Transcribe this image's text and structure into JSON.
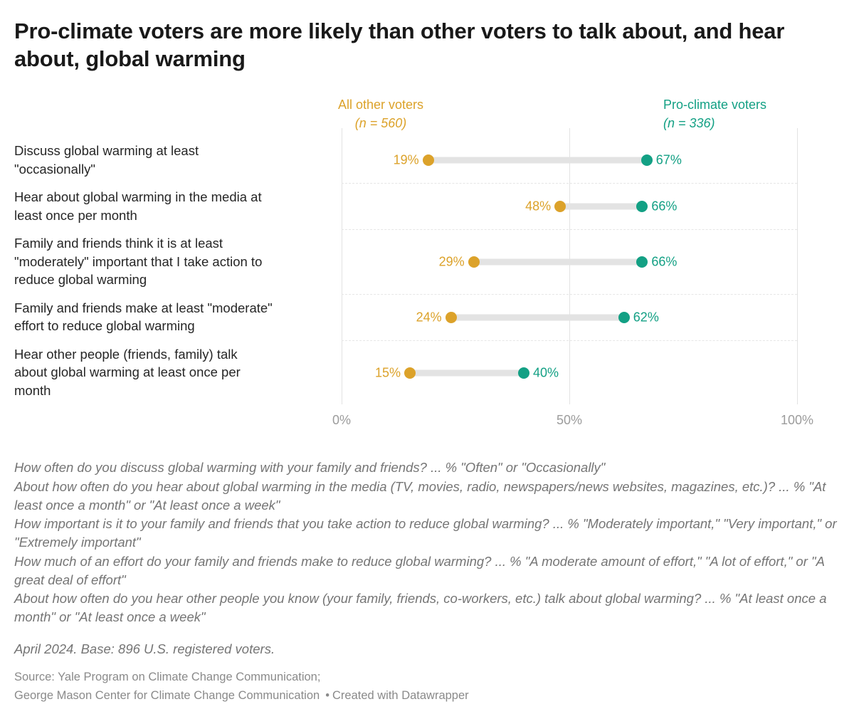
{
  "title": "Pro-climate voters are more likely than other voters to talk about, and hear about, global warming",
  "legend": {
    "other": {
      "label": "All other voters",
      "n_label": "(n = 560)",
      "color": "#DCA22A"
    },
    "pro": {
      "label": "Pro-climate voters",
      "n_label": "(n = 336)",
      "color": "#13A084"
    }
  },
  "chart_data": {
    "type": "dumbbell",
    "title": "Pro-climate voters are more likely than other voters to talk about, and hear about, global warming",
    "categories": [
      "Discuss global warming at least \"occasionally\"",
      "Hear about global warming in the media at least once per month",
      "Family and friends think it is at least \"moderately\" important that I take action to reduce global warming",
      "Family and friends make at least \"moderate\" effort to reduce global warming",
      "Hear other people (friends, family) talk about global warming at least once per month"
    ],
    "series": [
      {
        "name": "All other voters",
        "n": 560,
        "color": "#DCA22A",
        "values": [
          19,
          48,
          29,
          24,
          15
        ]
      },
      {
        "name": "Pro-climate voters",
        "n": 336,
        "color": "#13A084",
        "values": [
          67,
          66,
          66,
          62,
          40
        ]
      }
    ],
    "x_axis": {
      "range": [
        0,
        100
      ],
      "ticks": [
        "0%",
        "50%",
        "100%"
      ],
      "unit": "%"
    },
    "legend_position": "top",
    "grid": "vertical",
    "rows": [
      {
        "label": "Discuss global warming at least\n\"occasionally\"",
        "other_value": 19,
        "pro_value": 67,
        "other_label": "19%",
        "pro_label": "67%"
      },
      {
        "label": "Hear about global warming in the media at\nleast once per month",
        "other_value": 48,
        "pro_value": 66,
        "other_label": "48%",
        "pro_label": "66%"
      },
      {
        "label": "Family and friends think it is at least\n\"moderately\" important that I take action to\nreduce global warming",
        "other_value": 29,
        "pro_value": 66,
        "other_label": "29%",
        "pro_label": "66%"
      },
      {
        "label": "Family and friends make at least \"moderate\"\neffort to reduce global warming",
        "other_value": 24,
        "pro_value": 62,
        "other_label": "24%",
        "pro_label": "62%"
      },
      {
        "label": "Hear other people (friends, family) talk\nabout global warming at least once per\nmonth",
        "other_value": 15,
        "pro_value": 40,
        "other_label": "15%",
        "pro_label": "40%"
      }
    ]
  },
  "axis": {
    "tick0": "0%",
    "tick50": "50%",
    "tick100": "100%"
  },
  "notes": [
    "How often do you discuss global warming with your family and friends? ... % \"Often\" or \"Occasionally\"",
    "About how often do you hear about global warming in the media (TV, movies, radio, newspapers/news websites, magazines, etc.)? ... % \"At least once a month\" or \"At least once a week\"",
    "How important is it to your family and friends that you take action to reduce global warming? ... % \"Moderately important,\" \"Very important,\" or \"Extremely important\"",
    "How much of an effort do your family and friends make to reduce global warming? ... % \"A moderate amount of effort,\" \"A lot of effort,\" or \"A great deal of effort\"",
    "About how often do you hear other people you know (your family, friends, co-workers, etc.) talk about global warming? ... % \"At least once a month\" or \"At least once a week\""
  ],
  "base_note": "April 2024. Base: 896 U.S. registered voters.",
  "source": {
    "line1": "Source: Yale Program on Climate Change Communication;",
    "line2": "George Mason Center for Climate Change Communication",
    "separator": "•",
    "attribution": "Created with Datawrapper"
  }
}
